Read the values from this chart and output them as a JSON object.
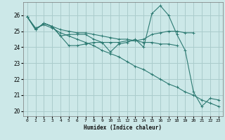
{
  "xlabel": "Humidex (Indice chaleur)",
  "xlim": [
    -0.5,
    23.5
  ],
  "ylim": [
    19.7,
    26.8
  ],
  "yticks": [
    20,
    21,
    22,
    23,
    24,
    25,
    26
  ],
  "xticks": [
    0,
    1,
    2,
    3,
    4,
    5,
    6,
    7,
    8,
    9,
    10,
    11,
    12,
    13,
    14,
    15,
    16,
    17,
    18,
    19,
    20,
    21,
    22,
    23
  ],
  "bg_color": "#cce8e8",
  "grid_color": "#aacccc",
  "line_color": "#2d7a72",
  "series": [
    [
      25.9,
      25.1,
      25.5,
      25.3,
      24.7,
      24.1,
      24.1,
      24.2,
      24.3,
      24.3,
      23.7,
      24.2,
      24.3,
      24.5,
      24.0,
      26.1,
      26.6,
      26.0,
      24.8,
      23.8,
      21.2,
      20.3,
      20.8,
      20.7
    ],
    [
      25.9,
      25.1,
      25.5,
      25.3,
      24.7,
      24.8,
      24.8,
      24.8,
      24.5,
      24.3,
      24.3,
      24.3,
      24.4,
      24.4,
      24.5,
      24.8,
      24.9,
      25.0,
      25.0,
      24.9,
      24.9,
      null,
      null,
      null
    ],
    [
      25.9,
      25.1,
      25.5,
      25.3,
      25.1,
      25.0,
      24.9,
      24.9,
      24.8,
      24.7,
      24.6,
      24.5,
      24.5,
      24.4,
      24.3,
      24.3,
      24.2,
      24.2,
      24.1,
      null,
      null,
      null,
      null,
      null
    ],
    [
      25.9,
      25.2,
      25.4,
      25.2,
      24.9,
      24.7,
      24.5,
      24.3,
      24.1,
      23.8,
      23.6,
      23.4,
      23.1,
      22.8,
      22.6,
      22.3,
      22.0,
      21.7,
      21.5,
      21.2,
      21.0,
      20.7,
      20.5,
      20.3
    ]
  ]
}
